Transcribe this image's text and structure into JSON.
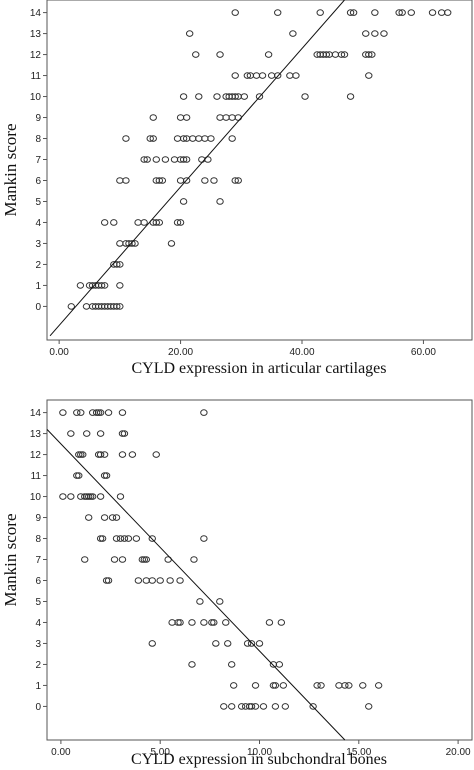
{
  "chart_data": [
    {
      "type": "scatter",
      "xlabel": "CYLD expression in articular cartilages",
      "ylabel": "Mankin score",
      "xlim": [
        -2,
        68
      ],
      "ylim": [
        -1.6,
        14.6
      ],
      "xticks": [
        "0.00",
        "20.00",
        "40.00",
        "60.00"
      ],
      "xtick_values": [
        0,
        20,
        40,
        60
      ],
      "yticks": [
        "0",
        "1",
        "2",
        "3",
        "4",
        "5",
        "6",
        "7",
        "8",
        "9",
        "10",
        "11",
        "12",
        "13",
        "14"
      ],
      "grid": false,
      "fit_line": {
        "x": [
          -1.5,
          47
        ],
        "y": [
          -1.4,
          14.6
        ]
      },
      "points": [
        {
          "x": 2,
          "y": 0
        },
        {
          "x": 4.5,
          "y": 0
        },
        {
          "x": 5.5,
          "y": 0
        },
        {
          "x": 6,
          "y": 0
        },
        {
          "x": 6.5,
          "y": 0
        },
        {
          "x": 7,
          "y": 0
        },
        {
          "x": 7.5,
          "y": 0
        },
        {
          "x": 8,
          "y": 0
        },
        {
          "x": 8.5,
          "y": 0
        },
        {
          "x": 9,
          "y": 0
        },
        {
          "x": 9.5,
          "y": 0
        },
        {
          "x": 10,
          "y": 0
        },
        {
          "x": 3.5,
          "y": 1
        },
        {
          "x": 5,
          "y": 1
        },
        {
          "x": 5.5,
          "y": 1
        },
        {
          "x": 6,
          "y": 1
        },
        {
          "x": 6.5,
          "y": 1
        },
        {
          "x": 7,
          "y": 1
        },
        {
          "x": 7.5,
          "y": 1
        },
        {
          "x": 10,
          "y": 1
        },
        {
          "x": 9,
          "y": 2
        },
        {
          "x": 9.5,
          "y": 2
        },
        {
          "x": 10,
          "y": 2
        },
        {
          "x": 10,
          "y": 3
        },
        {
          "x": 11,
          "y": 3
        },
        {
          "x": 11.5,
          "y": 3
        },
        {
          "x": 12,
          "y": 3
        },
        {
          "x": 12.5,
          "y": 3
        },
        {
          "x": 18.5,
          "y": 3
        },
        {
          "x": 7.5,
          "y": 4
        },
        {
          "x": 9,
          "y": 4
        },
        {
          "x": 13,
          "y": 4
        },
        {
          "x": 14,
          "y": 4
        },
        {
          "x": 15.5,
          "y": 4
        },
        {
          "x": 16,
          "y": 4
        },
        {
          "x": 16.5,
          "y": 4
        },
        {
          "x": 19.5,
          "y": 4
        },
        {
          "x": 20,
          "y": 4
        },
        {
          "x": 20.5,
          "y": 5
        },
        {
          "x": 26.5,
          "y": 5
        },
        {
          "x": 10,
          "y": 6
        },
        {
          "x": 11,
          "y": 6
        },
        {
          "x": 16,
          "y": 6
        },
        {
          "x": 16.5,
          "y": 6
        },
        {
          "x": 17,
          "y": 6
        },
        {
          "x": 20,
          "y": 6
        },
        {
          "x": 21,
          "y": 6
        },
        {
          "x": 24,
          "y": 6
        },
        {
          "x": 25.5,
          "y": 6
        },
        {
          "x": 29,
          "y": 6
        },
        {
          "x": 29.5,
          "y": 6
        },
        {
          "x": 14,
          "y": 7
        },
        {
          "x": 14.5,
          "y": 7
        },
        {
          "x": 16,
          "y": 7
        },
        {
          "x": 17.5,
          "y": 7
        },
        {
          "x": 19,
          "y": 7
        },
        {
          "x": 20,
          "y": 7
        },
        {
          "x": 20.5,
          "y": 7
        },
        {
          "x": 21,
          "y": 7
        },
        {
          "x": 23.5,
          "y": 7
        },
        {
          "x": 24.5,
          "y": 7
        },
        {
          "x": 11,
          "y": 8
        },
        {
          "x": 15,
          "y": 8
        },
        {
          "x": 15.5,
          "y": 8
        },
        {
          "x": 19.5,
          "y": 8
        },
        {
          "x": 20.5,
          "y": 8
        },
        {
          "x": 21,
          "y": 8
        },
        {
          "x": 22,
          "y": 8
        },
        {
          "x": 23,
          "y": 8
        },
        {
          "x": 24,
          "y": 8
        },
        {
          "x": 25,
          "y": 8
        },
        {
          "x": 28.5,
          "y": 8
        },
        {
          "x": 15.5,
          "y": 9
        },
        {
          "x": 20,
          "y": 9
        },
        {
          "x": 21,
          "y": 9
        },
        {
          "x": 26.5,
          "y": 9
        },
        {
          "x": 27.5,
          "y": 9
        },
        {
          "x": 28.5,
          "y": 9
        },
        {
          "x": 29.5,
          "y": 9
        },
        {
          "x": 20.5,
          "y": 10
        },
        {
          "x": 23,
          "y": 10
        },
        {
          "x": 26,
          "y": 10
        },
        {
          "x": 27.5,
          "y": 10
        },
        {
          "x": 28,
          "y": 10
        },
        {
          "x": 28.5,
          "y": 10
        },
        {
          "x": 29,
          "y": 10
        },
        {
          "x": 29.5,
          "y": 10
        },
        {
          "x": 30.5,
          "y": 10
        },
        {
          "x": 33,
          "y": 10
        },
        {
          "x": 40.5,
          "y": 10
        },
        {
          "x": 48,
          "y": 10
        },
        {
          "x": 29,
          "y": 11
        },
        {
          "x": 31,
          "y": 11
        },
        {
          "x": 31.5,
          "y": 11
        },
        {
          "x": 32.5,
          "y": 11
        },
        {
          "x": 33.5,
          "y": 11
        },
        {
          "x": 35,
          "y": 11
        },
        {
          "x": 36,
          "y": 11
        },
        {
          "x": 38,
          "y": 11
        },
        {
          "x": 39,
          "y": 11
        },
        {
          "x": 51,
          "y": 11
        },
        {
          "x": 22.5,
          "y": 12
        },
        {
          "x": 26.5,
          "y": 12
        },
        {
          "x": 34.5,
          "y": 12
        },
        {
          "x": 42.5,
          "y": 12
        },
        {
          "x": 43,
          "y": 12
        },
        {
          "x": 43.5,
          "y": 12
        },
        {
          "x": 44,
          "y": 12
        },
        {
          "x": 44.5,
          "y": 12
        },
        {
          "x": 45.5,
          "y": 12
        },
        {
          "x": 46.5,
          "y": 12
        },
        {
          "x": 47,
          "y": 12
        },
        {
          "x": 50.5,
          "y": 12
        },
        {
          "x": 51,
          "y": 12
        },
        {
          "x": 51.5,
          "y": 12
        },
        {
          "x": 21.5,
          "y": 13
        },
        {
          "x": 38.5,
          "y": 13
        },
        {
          "x": 50.5,
          "y": 13
        },
        {
          "x": 52,
          "y": 13
        },
        {
          "x": 53.5,
          "y": 13
        },
        {
          "x": 29,
          "y": 14
        },
        {
          "x": 36,
          "y": 14
        },
        {
          "x": 43,
          "y": 14
        },
        {
          "x": 48,
          "y": 14
        },
        {
          "x": 48.5,
          "y": 14
        },
        {
          "x": 52,
          "y": 14
        },
        {
          "x": 56,
          "y": 14
        },
        {
          "x": 56.5,
          "y": 14
        },
        {
          "x": 58,
          "y": 14
        },
        {
          "x": 61.5,
          "y": 14
        },
        {
          "x": 63,
          "y": 14
        },
        {
          "x": 64,
          "y": 14
        }
      ]
    },
    {
      "type": "scatter",
      "xlabel": "CYLD expression in subchondral bones",
      "ylabel": "Mankin score",
      "xlim": [
        -0.7,
        20.7
      ],
      "ylim": [
        -1.6,
        14.6
      ],
      "xticks": [
        "0.00",
        "5.00",
        "10.00",
        "15.00",
        "20.00"
      ],
      "xtick_values": [
        0,
        5,
        10,
        15,
        20
      ],
      "yticks": [
        "0",
        "1",
        "2",
        "3",
        "4",
        "5",
        "6",
        "7",
        "8",
        "9",
        "10",
        "11",
        "12",
        "13",
        "14"
      ],
      "grid": false,
      "fit_line": {
        "x": [
          -0.7,
          14.3
        ],
        "y": [
          13.2,
          -1.6
        ]
      },
      "points": [
        {
          "x": 0.1,
          "y": 14
        },
        {
          "x": 0.8,
          "y": 14
        },
        {
          "x": 1.0,
          "y": 14
        },
        {
          "x": 1.6,
          "y": 14
        },
        {
          "x": 1.8,
          "y": 14
        },
        {
          "x": 1.9,
          "y": 14
        },
        {
          "x": 2.0,
          "y": 14
        },
        {
          "x": 2.4,
          "y": 14
        },
        {
          "x": 3.1,
          "y": 14
        },
        {
          "x": 7.2,
          "y": 14
        },
        {
          "x": 0.5,
          "y": 13
        },
        {
          "x": 1.3,
          "y": 13
        },
        {
          "x": 2.0,
          "y": 13
        },
        {
          "x": 3.1,
          "y": 13
        },
        {
          "x": 3.2,
          "y": 13
        },
        {
          "x": 0.9,
          "y": 12
        },
        {
          "x": 1.0,
          "y": 12
        },
        {
          "x": 1.1,
          "y": 12
        },
        {
          "x": 1.9,
          "y": 12
        },
        {
          "x": 2.0,
          "y": 12
        },
        {
          "x": 2.2,
          "y": 12
        },
        {
          "x": 3.1,
          "y": 12
        },
        {
          "x": 3.6,
          "y": 12
        },
        {
          "x": 4.8,
          "y": 12
        },
        {
          "x": 0.8,
          "y": 11
        },
        {
          "x": 0.9,
          "y": 11
        },
        {
          "x": 2.2,
          "y": 11
        },
        {
          "x": 2.3,
          "y": 11
        },
        {
          "x": 0.1,
          "y": 10
        },
        {
          "x": 0.5,
          "y": 10
        },
        {
          "x": 1.0,
          "y": 10
        },
        {
          "x": 1.2,
          "y": 10
        },
        {
          "x": 1.3,
          "y": 10
        },
        {
          "x": 1.4,
          "y": 10
        },
        {
          "x": 1.5,
          "y": 10
        },
        {
          "x": 1.6,
          "y": 10
        },
        {
          "x": 2.0,
          "y": 10
        },
        {
          "x": 3.0,
          "y": 10
        },
        {
          "x": 1.4,
          "y": 9
        },
        {
          "x": 2.2,
          "y": 9
        },
        {
          "x": 2.6,
          "y": 9
        },
        {
          "x": 2.8,
          "y": 9
        },
        {
          "x": 2.0,
          "y": 8
        },
        {
          "x": 2.1,
          "y": 8
        },
        {
          "x": 2.8,
          "y": 8
        },
        {
          "x": 3.0,
          "y": 8
        },
        {
          "x": 3.2,
          "y": 8
        },
        {
          "x": 3.4,
          "y": 8
        },
        {
          "x": 3.8,
          "y": 8
        },
        {
          "x": 4.6,
          "y": 8
        },
        {
          "x": 7.2,
          "y": 8
        },
        {
          "x": 1.2,
          "y": 7
        },
        {
          "x": 2.7,
          "y": 7
        },
        {
          "x": 3.1,
          "y": 7
        },
        {
          "x": 4.1,
          "y": 7
        },
        {
          "x": 4.2,
          "y": 7
        },
        {
          "x": 4.3,
          "y": 7
        },
        {
          "x": 5.4,
          "y": 7
        },
        {
          "x": 6.7,
          "y": 7
        },
        {
          "x": 2.3,
          "y": 6
        },
        {
          "x": 2.4,
          "y": 6
        },
        {
          "x": 3.9,
          "y": 6
        },
        {
          "x": 4.3,
          "y": 6
        },
        {
          "x": 4.6,
          "y": 6
        },
        {
          "x": 5.0,
          "y": 6
        },
        {
          "x": 5.5,
          "y": 6
        },
        {
          "x": 6.0,
          "y": 6
        },
        {
          "x": 7.0,
          "y": 5
        },
        {
          "x": 8.0,
          "y": 5
        },
        {
          "x": 5.6,
          "y": 4
        },
        {
          "x": 5.9,
          "y": 4
        },
        {
          "x": 6.0,
          "y": 4
        },
        {
          "x": 6.6,
          "y": 4
        },
        {
          "x": 7.2,
          "y": 4
        },
        {
          "x": 7.6,
          "y": 4
        },
        {
          "x": 7.7,
          "y": 4
        },
        {
          "x": 8.3,
          "y": 4
        },
        {
          "x": 10.5,
          "y": 4
        },
        {
          "x": 11.1,
          "y": 4
        },
        {
          "x": 4.6,
          "y": 3
        },
        {
          "x": 7.8,
          "y": 3
        },
        {
          "x": 8.4,
          "y": 3
        },
        {
          "x": 9.4,
          "y": 3
        },
        {
          "x": 9.6,
          "y": 3
        },
        {
          "x": 10.0,
          "y": 3
        },
        {
          "x": 6.6,
          "y": 2
        },
        {
          "x": 8.6,
          "y": 2
        },
        {
          "x": 10.7,
          "y": 2
        },
        {
          "x": 11.0,
          "y": 2
        },
        {
          "x": 8.7,
          "y": 1
        },
        {
          "x": 9.8,
          "y": 1
        },
        {
          "x": 10.7,
          "y": 1
        },
        {
          "x": 10.8,
          "y": 1
        },
        {
          "x": 11.2,
          "y": 1
        },
        {
          "x": 12.9,
          "y": 1
        },
        {
          "x": 13.1,
          "y": 1
        },
        {
          "x": 14.0,
          "y": 1
        },
        {
          "x": 14.3,
          "y": 1
        },
        {
          "x": 14.5,
          "y": 1
        },
        {
          "x": 15.2,
          "y": 1
        },
        {
          "x": 16.0,
          "y": 1
        },
        {
          "x": 8.2,
          "y": 0
        },
        {
          "x": 8.6,
          "y": 0
        },
        {
          "x": 9.1,
          "y": 0
        },
        {
          "x": 9.3,
          "y": 0
        },
        {
          "x": 9.5,
          "y": 0
        },
        {
          "x": 9.6,
          "y": 0
        },
        {
          "x": 9.8,
          "y": 0
        },
        {
          "x": 10.2,
          "y": 0
        },
        {
          "x": 10.8,
          "y": 0
        },
        {
          "x": 11.3,
          "y": 0
        },
        {
          "x": 12.7,
          "y": 0
        },
        {
          "x": 15.5,
          "y": 0
        }
      ]
    }
  ]
}
